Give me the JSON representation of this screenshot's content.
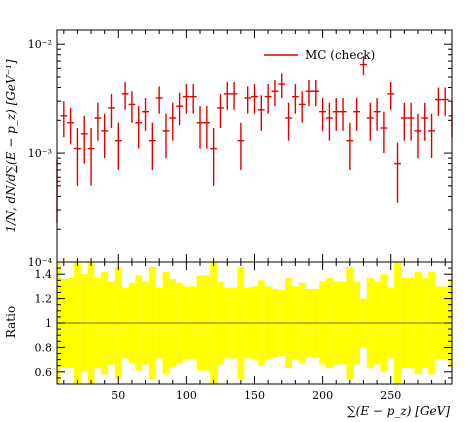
{
  "chart_data": [
    {
      "type": "scatter",
      "panel": "main",
      "ylabel": "1/N, dN/d∑(E − p_z) [GeV⁻¹]",
      "yscale": "log",
      "ylim": [
        0.0001,
        0.0135
      ],
      "xlim": [
        5,
        295
      ],
      "ytick_labels": [
        "10⁻⁴",
        "10⁻³",
        "10⁻²"
      ],
      "ytick_values": [
        0.0001,
        0.001,
        0.01
      ],
      "legend": {
        "placement": "top-right",
        "entries": [
          "MC (check)"
        ]
      },
      "series": [
        {
          "name": "MC (check)",
          "color": "#e00000",
          "bin_width": 5,
          "x": [
            5,
            10,
            15,
            20,
            25,
            30,
            35,
            40,
            45,
            50,
            55,
            60,
            65,
            70,
            75,
            80,
            85,
            90,
            95,
            100,
            105,
            110,
            115,
            120,
            125,
            130,
            135,
            140,
            145,
            150,
            155,
            160,
            165,
            170,
            175,
            180,
            185,
            190,
            195,
            200,
            205,
            210,
            215,
            220,
            225,
            230,
            235,
            240,
            245,
            250,
            255,
            260,
            265,
            270,
            275,
            280,
            285,
            290,
            295
          ],
          "y": [
            0.00055,
            0.0022,
            0.0019,
            0.0011,
            0.0015,
            0.0011,
            0.0021,
            0.0016,
            0.0026,
            0.0013,
            0.0035,
            0.0028,
            0.0019,
            0.0024,
            0.0013,
            0.0032,
            0.0016,
            0.0021,
            0.0027,
            0.0033,
            0.0033,
            0.0019,
            0.0019,
            0.0011,
            0.0026,
            0.0035,
            0.0035,
            0.0013,
            0.0032,
            0.0033,
            0.0025,
            0.0033,
            0.0037,
            0.0043,
            0.0021,
            0.0033,
            0.0028,
            0.0037,
            0.0037,
            0.0024,
            0.0021,
            0.0024,
            0.0024,
            0.0013,
            0.0024,
            0.0065,
            0.0021,
            0.0024,
            0.0017,
            0.0035,
            0.0008,
            0.0021,
            0.0021,
            0.0016,
            0.0021,
            0.0016,
            0.0031,
            0.0031,
            0.0022
          ],
          "yerr": [
            0.00032,
            0.0008,
            0.0007,
            0.0006,
            0.0007,
            0.0006,
            0.0008,
            0.0007,
            0.0009,
            0.0006,
            0.001,
            0.0009,
            0.0008,
            0.0008,
            0.0006,
            0.0009,
            0.0007,
            0.0008,
            0.0009,
            0.001,
            0.001,
            0.0008,
            0.0008,
            0.0006,
            0.0009,
            0.001,
            0.001,
            0.0006,
            0.0009,
            0.001,
            0.0009,
            0.001,
            0.001,
            0.0011,
            0.0008,
            0.001,
            0.0009,
            0.001,
            0.001,
            0.0008,
            0.0008,
            0.0008,
            0.0008,
            0.0006,
            0.0008,
            0.0013,
            0.0008,
            0.0008,
            0.0007,
            0.001,
            0.00045,
            0.0008,
            0.0008,
            0.0007,
            0.0008,
            0.0007,
            0.0009,
            0.0009,
            0.0008
          ]
        }
      ]
    },
    {
      "type": "bar",
      "panel": "ratio",
      "ylabel": "Ratio",
      "xlabel": "∑(E − p_z) [GeV]",
      "xlim": [
        5,
        295
      ],
      "ylim": [
        0.5,
        1.5
      ],
      "xtick_labels": [
        "50",
        "100",
        "150",
        "200",
        "250"
      ],
      "xtick_values": [
        50,
        100,
        150,
        200,
        250
      ],
      "ytick_labels": [
        "0.6",
        "0.8",
        "1",
        "1.2",
        "1.4"
      ],
      "ytick_values": [
        0.6,
        0.8,
        1.0,
        1.2,
        1.4
      ],
      "reference_line": 1.0,
      "band_color": "#ffff00",
      "band_halfwidth": [
        0.5,
        0.36,
        0.37,
        0.5,
        0.4,
        0.5,
        0.37,
        0.42,
        0.34,
        0.46,
        0.29,
        0.33,
        0.39,
        0.34,
        0.46,
        0.29,
        0.42,
        0.36,
        0.33,
        0.3,
        0.3,
        0.39,
        0.39,
        0.5,
        0.34,
        0.29,
        0.29,
        0.46,
        0.29,
        0.3,
        0.35,
        0.3,
        0.28,
        0.27,
        0.37,
        0.3,
        0.33,
        0.28,
        0.28,
        0.34,
        0.37,
        0.34,
        0.34,
        0.46,
        0.34,
        0.2,
        0.37,
        0.34,
        0.4,
        0.29,
        0.5,
        0.37,
        0.37,
        0.42,
        0.37,
        0.42,
        0.3,
        0.3,
        0.36
      ]
    }
  ]
}
